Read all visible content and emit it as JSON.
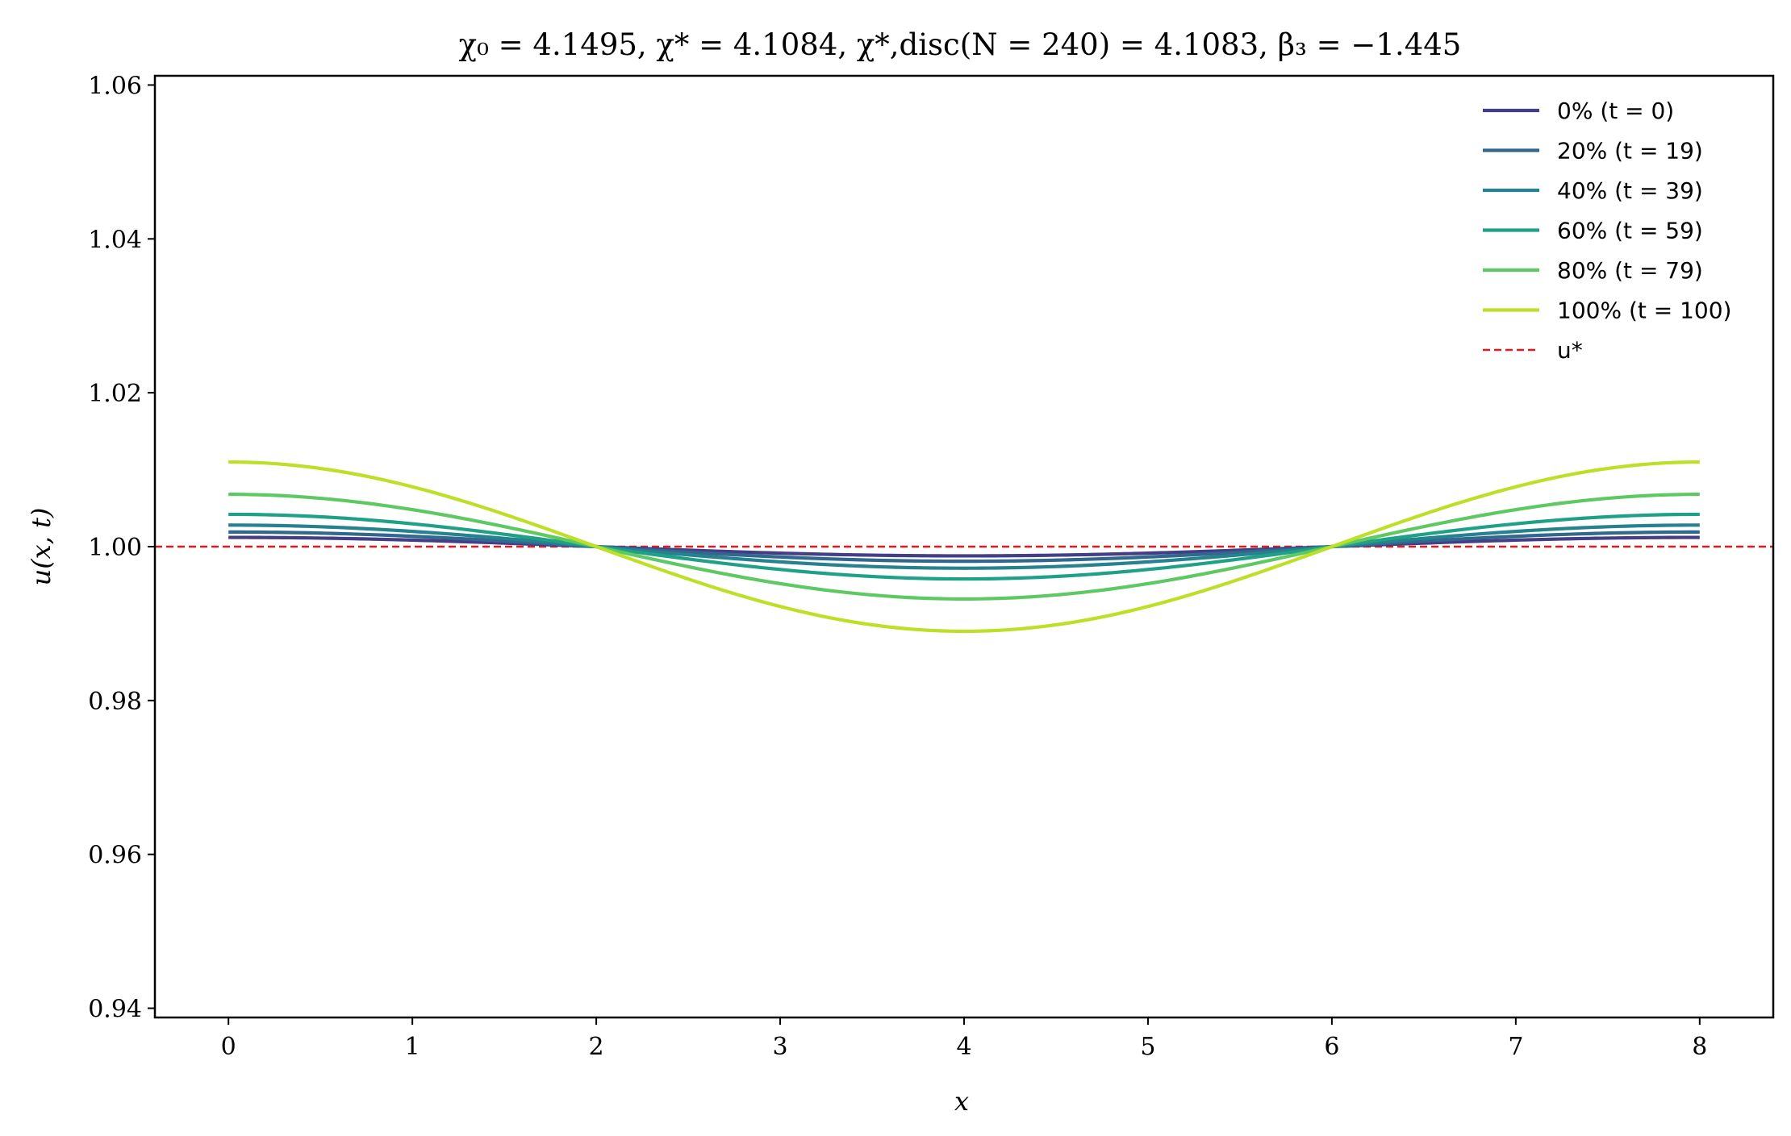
{
  "chart_data": {
    "type": "line",
    "title": "χ₀ = 4.1495,  χ* = 4.1084,  χ*,disc(N = 240) = 4.1083,  β₃ = −1.445",
    "xlabel": "x",
    "ylabel": "u(x, t)",
    "xlim": [
      -0.4,
      8.4
    ],
    "ylim": [
      0.9388,
      1.0612
    ],
    "xticks": [
      0,
      1,
      2,
      3,
      4,
      5,
      6,
      7,
      8
    ],
    "yticks": [
      0.94,
      0.96,
      0.98,
      1.0,
      1.02,
      1.04,
      1.06
    ],
    "ytick_labels": [
      "0.94",
      "0.96",
      "0.98",
      "1.00",
      "1.02",
      "1.04",
      "1.06"
    ],
    "x_range": [
      0,
      8
    ],
    "wavenumber": 0.7854,
    "grid": false,
    "legend_position": "top-right",
    "series": [
      {
        "name": "0% (t = 0)",
        "amplitude": 0.0012,
        "color": "#433e85"
      },
      {
        "name": "20% (t = 19)",
        "amplitude": 0.0019,
        "color": "#31688e"
      },
      {
        "name": "40% (t = 39)",
        "amplitude": 0.0028,
        "color": "#26828e"
      },
      {
        "name": "60% (t = 59)",
        "amplitude": 0.0042,
        "color": "#1fa187"
      },
      {
        "name": "80% (t = 79)",
        "amplitude": 0.0068,
        "color": "#5ec962"
      },
      {
        "name": "100% (t = 100)",
        "amplitude": 0.011,
        "color": "#bddf26"
      }
    ],
    "reference": {
      "name": "u*",
      "value": 1.0,
      "color": "#e41a1c",
      "style": "dashed"
    }
  }
}
